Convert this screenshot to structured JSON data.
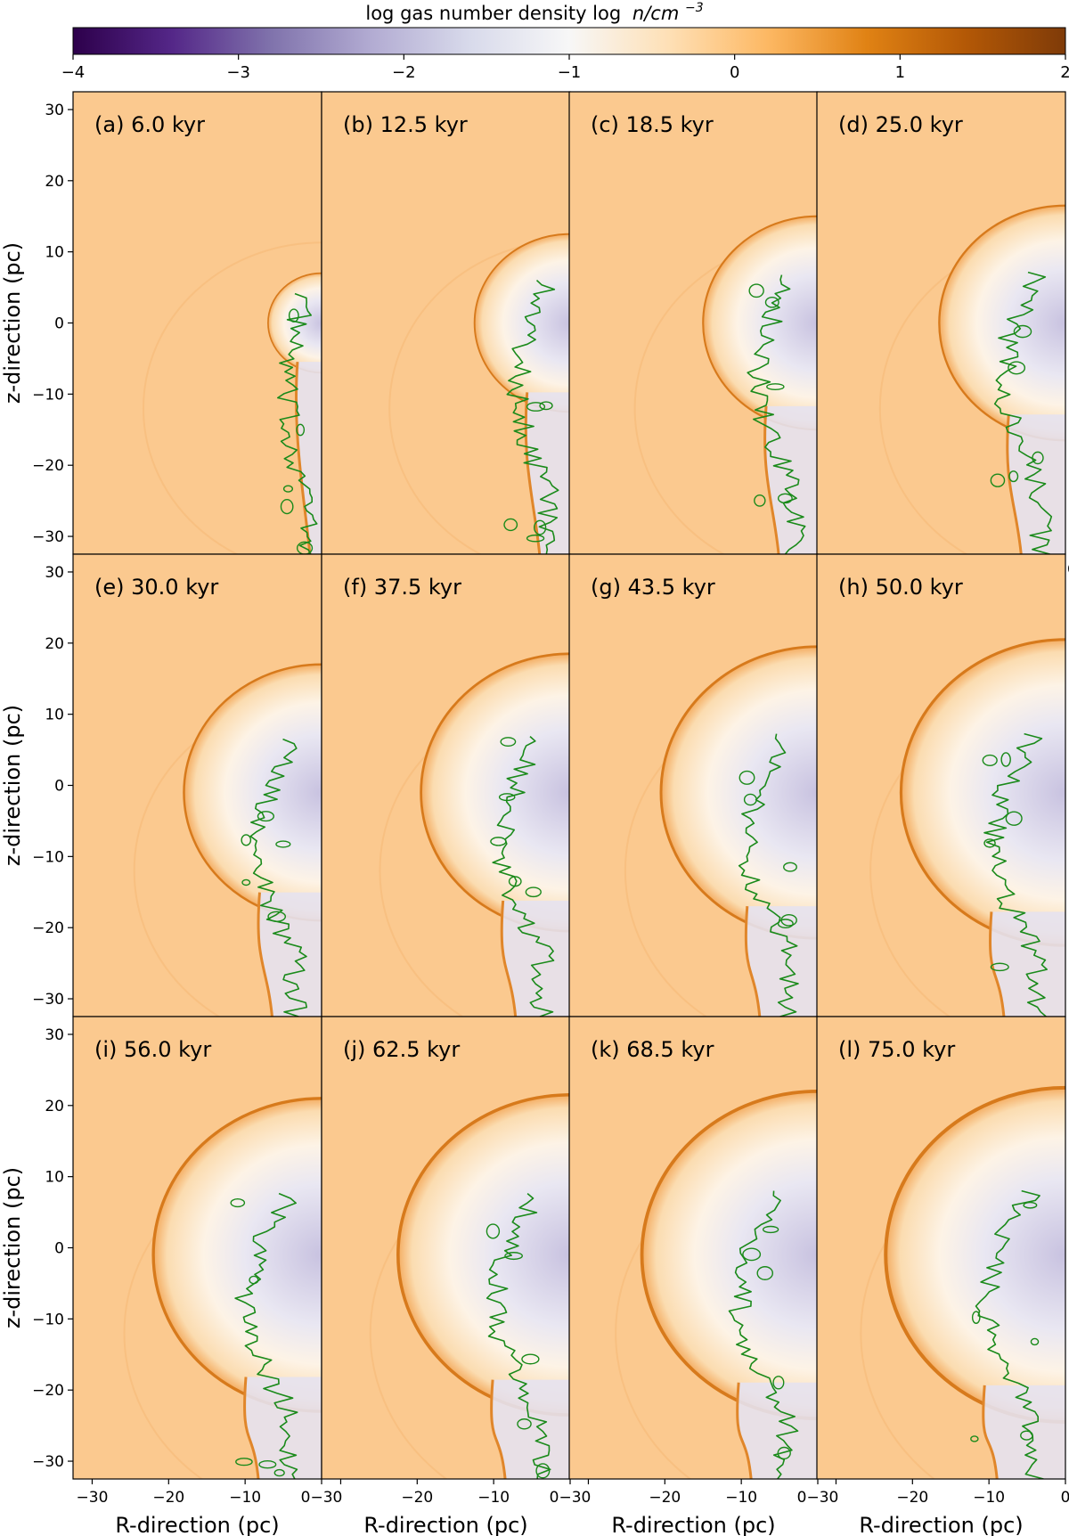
{
  "chart_data": {
    "type": "heatmap",
    "colorbar": {
      "label_text": "log gas number density log",
      "label_math": "n/cm",
      "label_exp": "−3",
      "ticks": [
        "−4",
        "−3",
        "−2",
        "−1",
        "0",
        "1",
        "2"
      ],
      "range": [
        -4,
        2
      ],
      "colormap": [
        "#2d004b",
        "#542788",
        "#8073ac",
        "#b2abd2",
        "#d8daeb",
        "#f7f7f7",
        "#fee0b6",
        "#fdb863",
        "#e08214",
        "#b35806",
        "#7f3b08"
      ]
    },
    "ambient_color": "#fbc98f",
    "contour_color": "#1a8a1a",
    "xlabel": "R-direction (pc)",
    "ylabel": "z-direction (pc)",
    "xlim": [
      -32.5,
      0
    ],
    "ylim": [
      -32.5,
      32.5
    ],
    "xticks": [
      "−30",
      "−20",
      "−10",
      "0"
    ],
    "xticks_merged": [
      "0−30",
      "0−30",
      "0−30"
    ],
    "yticks": [
      "30",
      "20",
      "10",
      "0",
      "−10",
      "−20",
      "−30"
    ],
    "overlap_tick": "0",
    "panels": [
      {
        "label": "(a) 6.0 kyr",
        "time_kyr": 6.0,
        "shell_radius_pc": 7.0,
        "cavity_radius_pc": 5.5
      },
      {
        "label": "(b) 12.5 kyr",
        "time_kyr": 12.5,
        "shell_radius_pc": 12.5,
        "cavity_radius_pc": 8.0
      },
      {
        "label": "(c) 18.5 kyr",
        "time_kyr": 18.5,
        "shell_radius_pc": 15.0,
        "cavity_radius_pc": 9.0
      },
      {
        "label": "(d) 25.0 kyr",
        "time_kyr": 25.0,
        "shell_radius_pc": 16.5,
        "cavity_radius_pc": 9.5
      },
      {
        "label": "(e) 30.0 kyr",
        "time_kyr": 30.0,
        "shell_radius_pc": 18.0,
        "cavity_radius_pc": 10.0
      },
      {
        "label": "(f) 37.5 kyr",
        "time_kyr": 37.5,
        "shell_radius_pc": 19.5,
        "cavity_radius_pc": 10.5
      },
      {
        "label": "(g) 43.5 kyr",
        "time_kyr": 43.5,
        "shell_radius_pc": 20.5,
        "cavity_radius_pc": 11.0
      },
      {
        "label": "(h) 50.0 kyr",
        "time_kyr": 50.0,
        "shell_radius_pc": 21.5,
        "cavity_radius_pc": 11.0
      },
      {
        "label": "(i) 56.0 kyr",
        "time_kyr": 56.0,
        "shell_radius_pc": 22.0,
        "cavity_radius_pc": 11.5
      },
      {
        "label": "(j) 62.5 kyr",
        "time_kyr": 62.5,
        "shell_radius_pc": 22.5,
        "cavity_radius_pc": 11.5
      },
      {
        "label": "(k) 68.5 kyr",
        "time_kyr": 68.5,
        "shell_radius_pc": 23.0,
        "cavity_radius_pc": 12.0
      },
      {
        "label": "(l) 75.0 kyr",
        "time_kyr": 75.0,
        "shell_radius_pc": 23.5,
        "cavity_radius_pc": 12.0
      }
    ]
  }
}
